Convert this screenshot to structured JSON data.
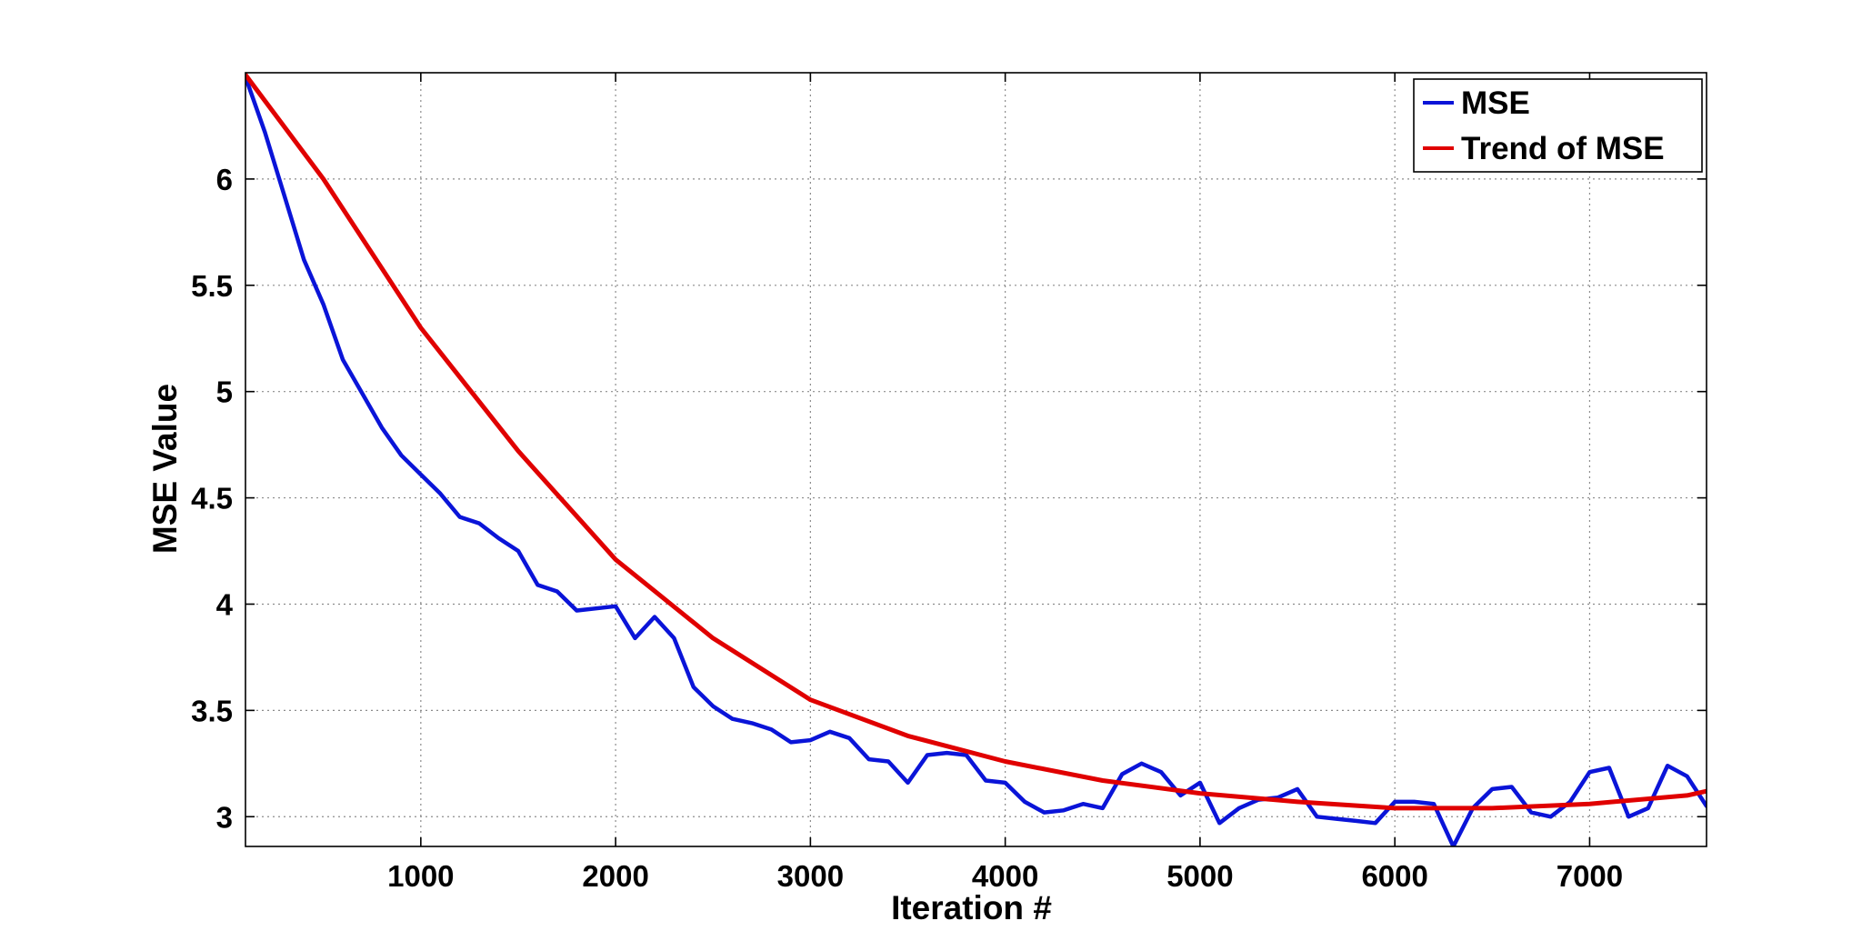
{
  "chart_data": {
    "type": "line",
    "title": "",
    "xlabel": "Iteration #",
    "ylabel": "MSE Value",
    "xlim": [
      100,
      7600
    ],
    "ylim": [
      2.86,
      6.5
    ],
    "xticks": [
      1000,
      2000,
      3000,
      4000,
      5000,
      6000,
      7000
    ],
    "xtick_labels": [
      "1000",
      "2000",
      "3000",
      "4000",
      "5000",
      "6000",
      "7000"
    ],
    "yticks": [
      3,
      3.5,
      4,
      4.5,
      5,
      5.5,
      6
    ],
    "ytick_labels": [
      "3",
      "3.5",
      "4",
      "4.5",
      "5",
      "5.5",
      "6"
    ],
    "grid": true,
    "legend_position": "top-right",
    "colors": {
      "MSE": "#0a14d8",
      "Trend of MSE": "#e00000"
    },
    "series": [
      {
        "name": "MSE",
        "x": [
          100,
          200,
          300,
          400,
          500,
          600,
          700,
          800,
          900,
          1000,
          1100,
          1200,
          1300,
          1400,
          1500,
          1600,
          1700,
          1800,
          1900,
          2000,
          2100,
          2200,
          2300,
          2400,
          2500,
          2600,
          2700,
          2800,
          2900,
          3000,
          3100,
          3200,
          3300,
          3400,
          3500,
          3600,
          3700,
          3800,
          3900,
          4000,
          4100,
          4200,
          4300,
          4400,
          4500,
          4600,
          4700,
          4800,
          4900,
          5000,
          5100,
          5200,
          5300,
          5400,
          5500,
          5600,
          5700,
          5800,
          5900,
          6000,
          6100,
          6200,
          6300,
          6400,
          6500,
          6600,
          6700,
          6800,
          6900,
          7000,
          7100,
          7200,
          7300,
          7400,
          7500,
          7600
        ],
        "y": [
          6.48,
          6.22,
          5.92,
          5.62,
          5.41,
          5.15,
          4.99,
          4.83,
          4.7,
          4.61,
          4.52,
          4.41,
          4.38,
          4.31,
          4.25,
          4.09,
          4.06,
          3.97,
          3.98,
          3.99,
          3.84,
          3.94,
          3.84,
          3.61,
          3.52,
          3.46,
          3.44,
          3.41,
          3.35,
          3.36,
          3.4,
          3.37,
          3.27,
          3.26,
          3.16,
          3.29,
          3.3,
          3.29,
          3.17,
          3.16,
          3.07,
          3.02,
          3.03,
          3.06,
          3.04,
          3.2,
          3.25,
          3.21,
          3.1,
          3.16,
          2.97,
          3.04,
          3.08,
          3.09,
          3.13,
          3.0,
          2.99,
          2.98,
          2.97,
          3.07,
          3.07,
          3.06,
          2.86,
          3.04,
          3.13,
          3.14,
          3.02,
          3.0,
          3.07,
          3.21,
          3.23,
          3.0,
          3.04,
          3.24,
          3.19,
          3.05
        ]
      },
      {
        "name": "Trend of MSE",
        "x": [
          100,
          500,
          1000,
          1500,
          2000,
          2500,
          3000,
          3500,
          4000,
          4500,
          5000,
          5500,
          6000,
          6500,
          7000,
          7500,
          7600
        ],
        "y": [
          6.49,
          6.0,
          5.3,
          4.72,
          4.21,
          3.84,
          3.55,
          3.38,
          3.26,
          3.17,
          3.11,
          3.07,
          3.04,
          3.04,
          3.06,
          3.1,
          3.12
        ]
      }
    ]
  }
}
